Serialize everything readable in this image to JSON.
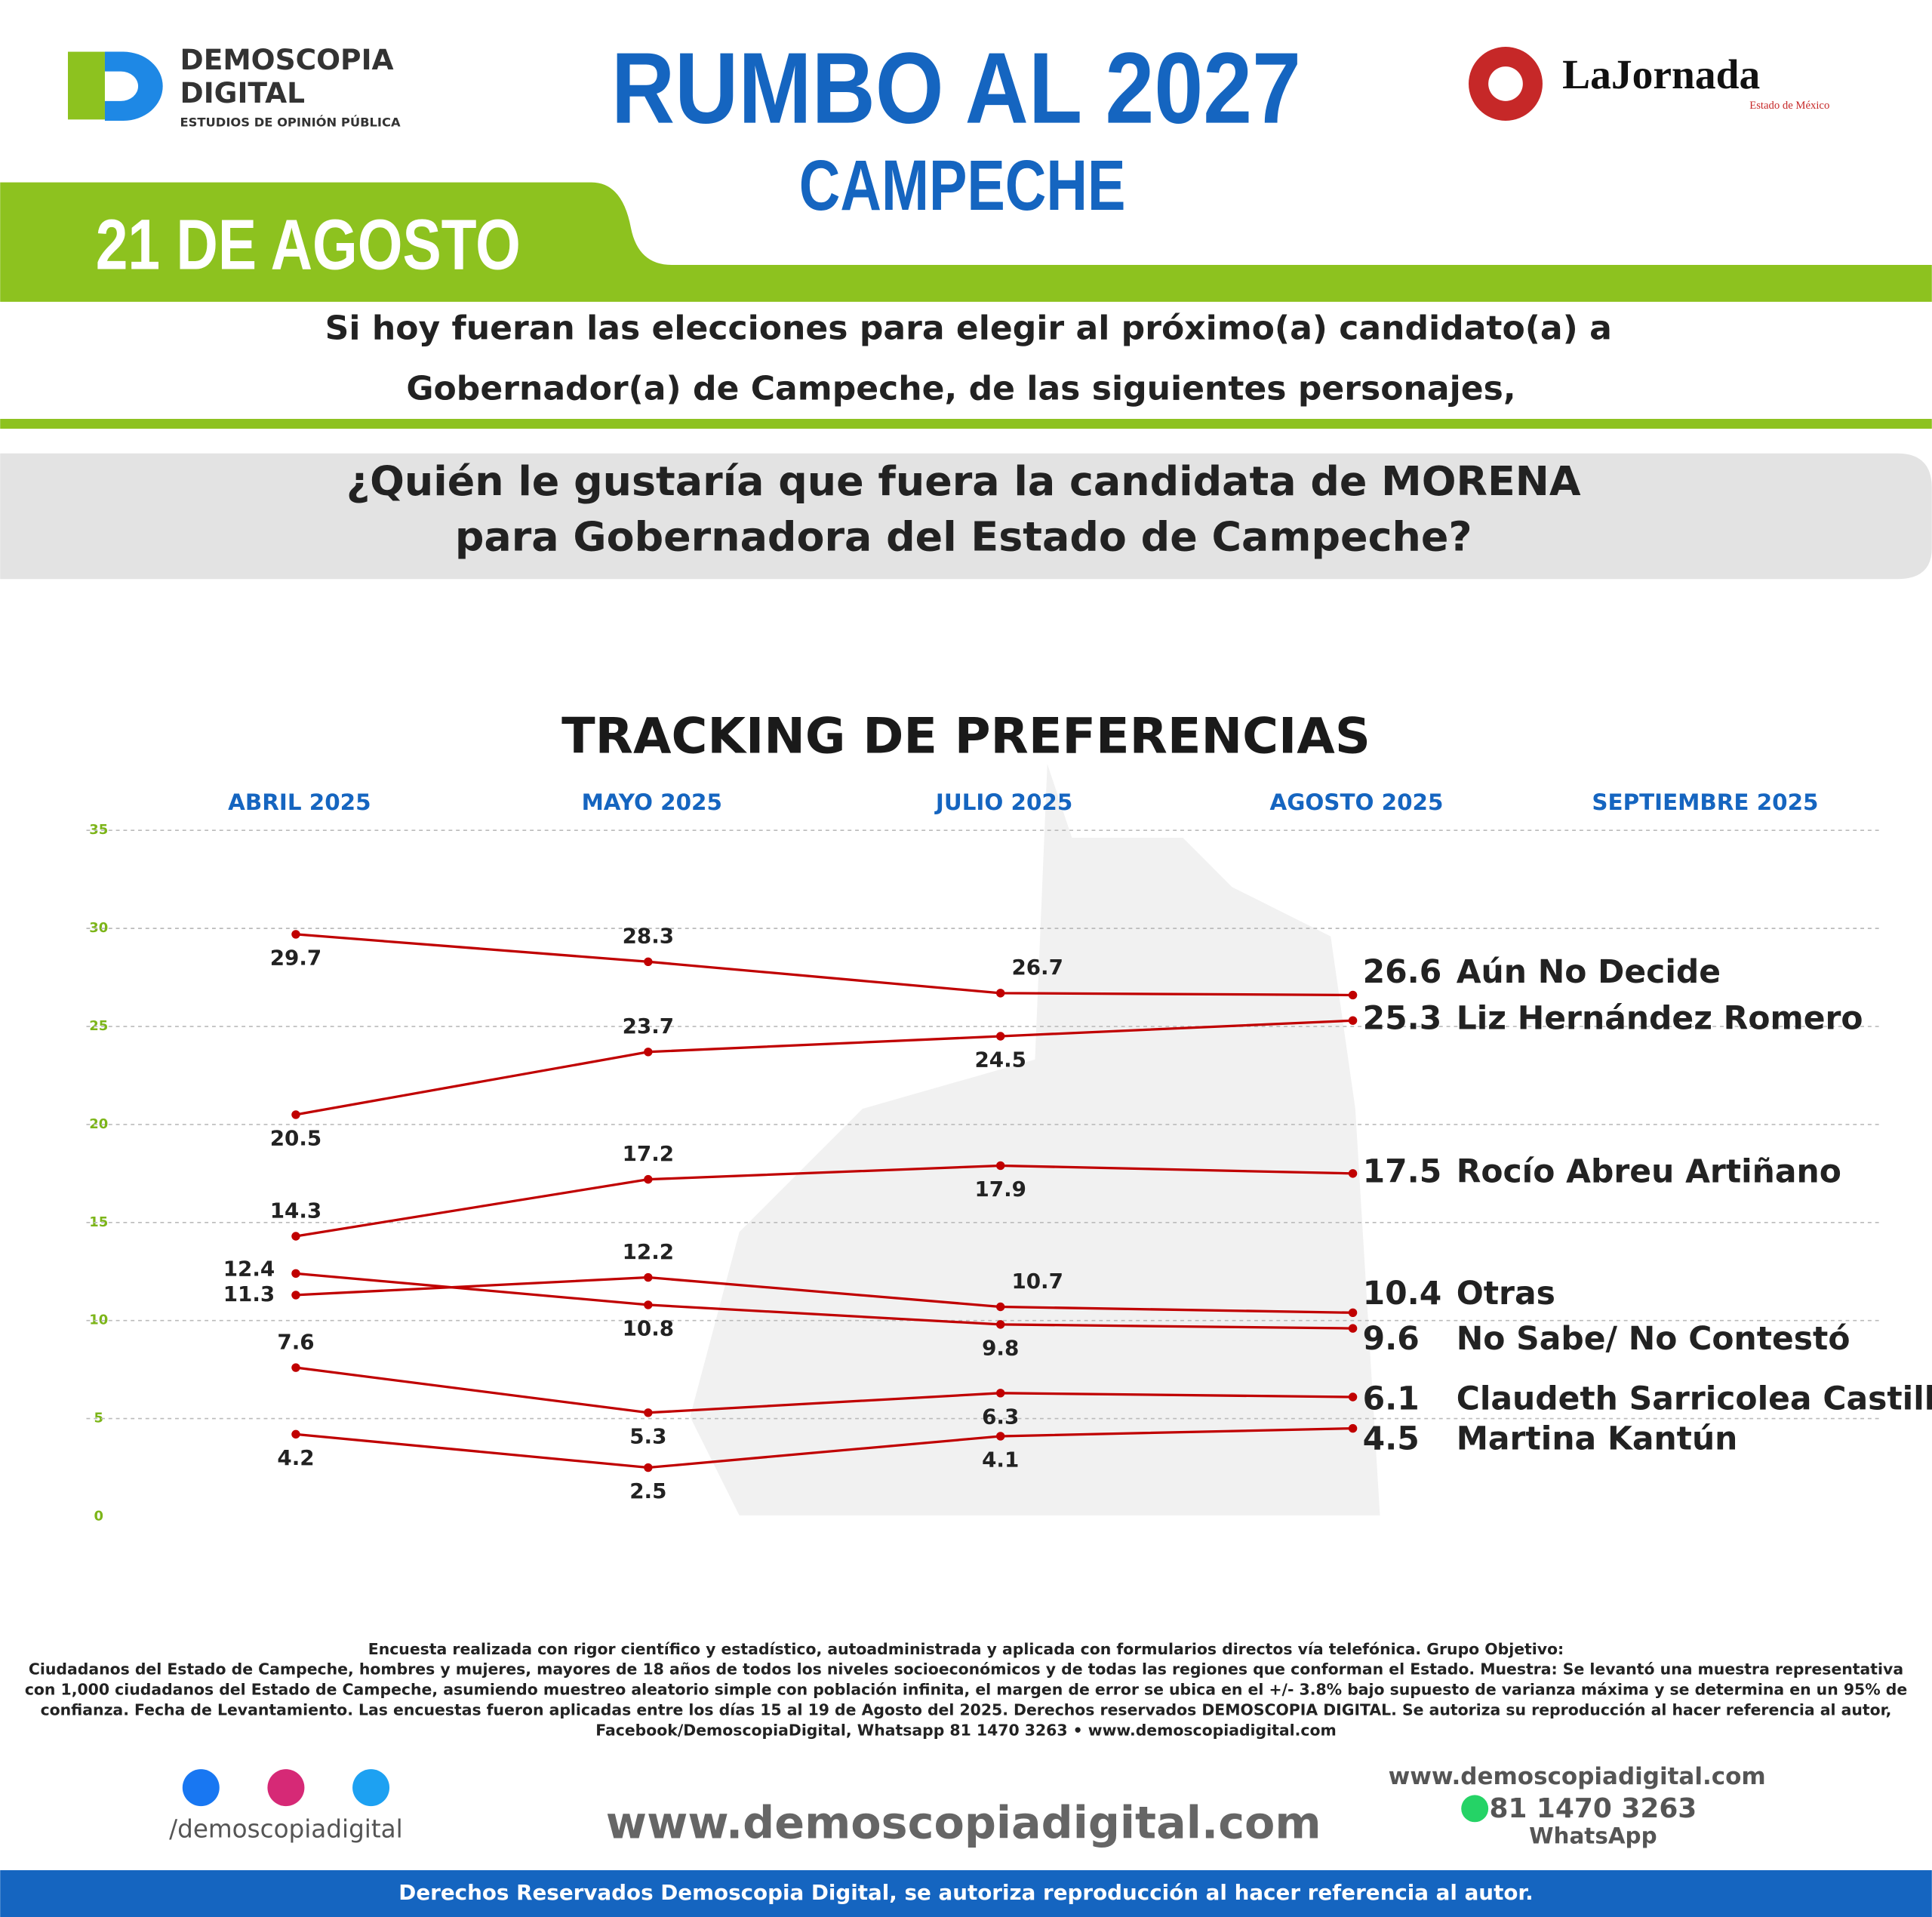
{
  "header": {
    "brand": "DEMOSCOPIA",
    "brand2": "DIGITAL",
    "brand_tag": "ESTUDIOS DE OPINIÓN PÚBLICA",
    "title": "RUMBO AL 2027",
    "subtitle": "CAMPECHE",
    "partner": "LaJornada",
    "partner_tag": "Estado de México",
    "date": "21 DE AGOSTO",
    "intro": [
      "Si hoy fueran las elecciones para elegir al próximo(a) candidato(a) a",
      "Gobernador(a) de Campeche, de las siguientes personajes,"
    ],
    "question": [
      "¿Quién le gustaría que fuera la candidata de MORENA",
      "para Gobernadora del Estado de Campeche?"
    ]
  },
  "chart_data": {
    "type": "line",
    "title": "TRACKING DE PREFERENCIAS",
    "categories": [
      "ABRIL 2025",
      "MAYO 2025",
      "JULIO 2025",
      "AGOSTO 2025",
      "SEPTIEMBRE 2025"
    ],
    "series": [
      {
        "name": "Aún No Decide",
        "color": "#c00000",
        "values": [
          29.7,
          28.3,
          26.7,
          26.6,
          null
        ]
      },
      {
        "name": "Liz Hernández Romero",
        "color": "#c00000",
        "values": [
          20.5,
          23.7,
          24.5,
          25.3,
          null
        ]
      },
      {
        "name": "Rocío Abreu Artiñano",
        "color": "#c00000",
        "values": [
          14.3,
          17.2,
          17.9,
          17.5,
          null
        ]
      },
      {
        "name": "Otras",
        "color": "#c00000",
        "values": [
          11.3,
          12.2,
          10.7,
          10.4,
          null
        ]
      },
      {
        "name": "No Sabe/ No Contestó",
        "color": "#c00000",
        "values": [
          12.4,
          10.8,
          9.8,
          9.6,
          null
        ]
      },
      {
        "name": "Claudeth Sarricolea Castillejo",
        "color": "#c00000",
        "values": [
          7.6,
          5.3,
          6.3,
          6.1,
          null
        ]
      },
      {
        "name": "Martina Kantún",
        "color": "#c00000",
        "values": [
          4.2,
          2.5,
          4.1,
          4.5,
          null
        ]
      }
    ],
    "ylim": [
      0,
      35
    ],
    "yticks": [
      0,
      5,
      10,
      15,
      20,
      25,
      30,
      35
    ],
    "grid": true
  },
  "footer": {
    "method": [
      "Encuesta realizada con rigor científico y estadístico, autoadministrada y aplicada con formularios directos vía telefónica. Grupo Objetivo:",
      "Ciudadanos del Estado de Campeche, hombres y mujeres, mayores de 18 años de todos los niveles socioeconómicos y de todas las regiones que conforman el Estado. Muestra: Se levantó una muestra representativa",
      "con 1,000 ciudadanos del Estado de Campeche, asumiendo muestreo aleatorio simple con población infinita, el margen de error se ubica en el +/- 3.8% bajo supuesto de varianza máxima y se determina en un 95% de",
      "confianza. Fecha de Levantamiento. Las encuestas fueron aplicadas entre los días 15 al 19 de Agosto del 2025. Derechos reservados DEMOSCOPIA DIGITAL. Se autoriza su reproducción al hacer referencia al autor,",
      "Facebook/DemoscopiaDigital, Whatsapp 81 1470 3263 • www.demoscopiadigital.com"
    ],
    "social": "/demoscopiadigital",
    "site": "www.demoscopiadigital.com",
    "site2": "www.demoscopiadigital.com",
    "phone": "81 1470 3263",
    "whatsapp": "WhatsApp",
    "rights": "Derechos Reservados Demoscopia Digital, se autoriza reproducción al hacer referencia al autor."
  }
}
